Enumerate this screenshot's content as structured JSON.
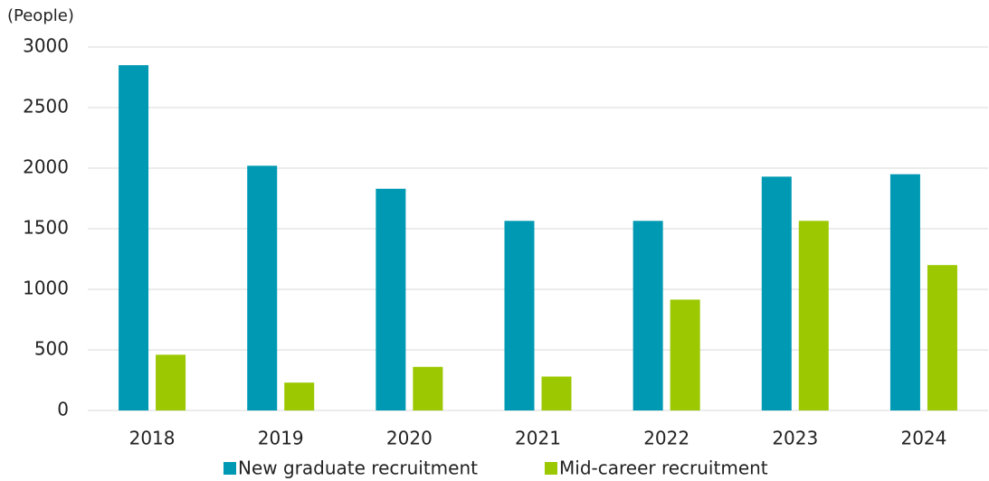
{
  "chart_data": {
    "type": "bar",
    "y_axis_label": "(People)",
    "categories": [
      "2018",
      "2019",
      "2020",
      "2021",
      "2022",
      "2023",
      "2024"
    ],
    "series": [
      {
        "name": "New graduate recruitment",
        "color": "#0099b4",
        "values": [
          2850,
          2020,
          1830,
          1565,
          1565,
          1930,
          1950
        ]
      },
      {
        "name": "Mid-career recruitment",
        "color": "#9bc800",
        "values": [
          460,
          230,
          360,
          280,
          915,
          1565,
          1200
        ]
      }
    ],
    "ylim": [
      0,
      3000
    ],
    "yticks": [
      0,
      500,
      1000,
      1500,
      2000,
      2500,
      3000
    ],
    "grid": true
  }
}
